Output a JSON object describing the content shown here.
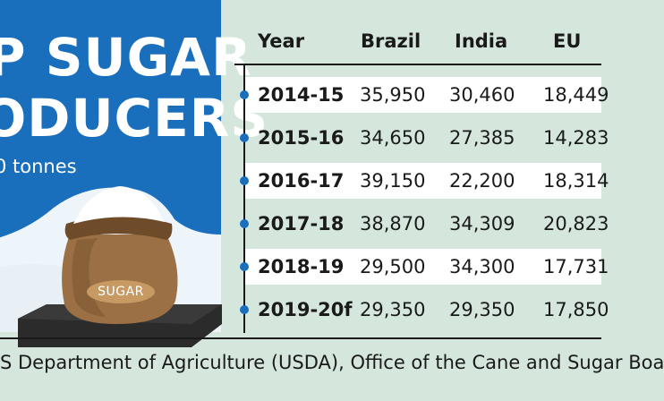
{
  "header": {
    "title_line1": "P SUGAR",
    "title_line2": "ODUCERS",
    "unit": "0 tonnes"
  },
  "illustration": {
    "sack_label": "SUGAR"
  },
  "chart_data": {
    "type": "table",
    "columns": [
      "Year",
      "Brazil",
      "India",
      "EU"
    ],
    "rows": [
      [
        "2014-15",
        "35,950",
        "30,460",
        "18,449"
      ],
      [
        "2015-16",
        "34,650",
        "27,385",
        "14,283"
      ],
      [
        "2016-17",
        "39,150",
        "22,200",
        "18,314"
      ],
      [
        "2017-18",
        "38,870",
        "34,309",
        "20,823"
      ],
      [
        "2018-19",
        "29,500",
        "34,300",
        "17,731"
      ],
      [
        "2019-20f",
        "29,350",
        "29,350",
        "17,850"
      ]
    ]
  },
  "footer": {
    "source": "S Department of Agriculture (USDA), Office of the Cane and Sugar Boa"
  },
  "colors": {
    "accent_blue": "#1a6fbd",
    "background": "#d5e7dd",
    "row_shade": "#ffffff"
  }
}
